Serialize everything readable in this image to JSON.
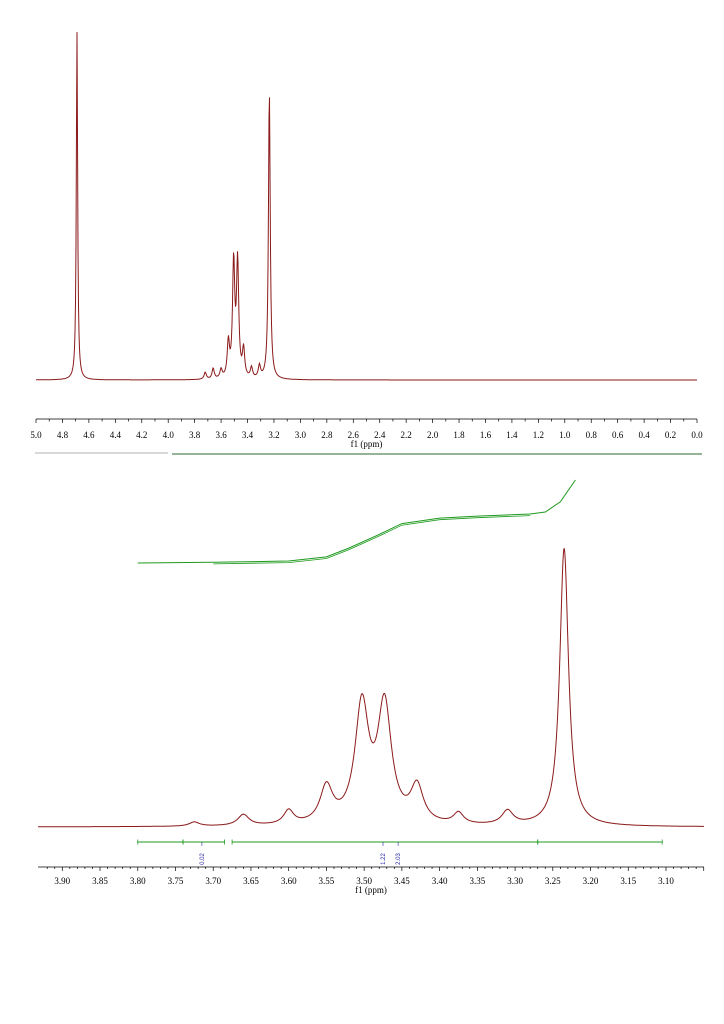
{
  "colors": {
    "spectrum": "#8b1a1a",
    "integral": "#1f9a1f",
    "integral_label": "#2a2aa8",
    "axis": "#000000"
  },
  "chart_data": [
    {
      "type": "line",
      "xlabel": "f1 (ppm)",
      "xlim": [
        5.0,
        0.0
      ],
      "x_reversed": true,
      "ticks": [
        "5.0",
        "4.8",
        "4.6",
        "4.4",
        "4.2",
        "4.0",
        "3.8",
        "3.6",
        "3.4",
        "3.2",
        "3.0",
        "2.8",
        "2.6",
        "2.4",
        "2.2",
        "2.0",
        "1.8",
        "1.6",
        "1.4",
        "1.2",
        "1.0",
        "0.8",
        "0.6",
        "0.4",
        "0.2",
        "0.0"
      ],
      "baseline": 0.0,
      "ylim": [
        0,
        1.0
      ],
      "peaks": [
        {
          "x": 4.69,
          "height": 1.0,
          "width": 0.006
        },
        {
          "x": 3.505,
          "height": 0.33,
          "width": 0.01
        },
        {
          "x": 3.475,
          "height": 0.33,
          "width": 0.01
        },
        {
          "x": 3.545,
          "height": 0.1,
          "width": 0.01
        },
        {
          "x": 3.43,
          "height": 0.08,
          "width": 0.01
        },
        {
          "x": 3.6,
          "height": 0.025,
          "width": 0.01
        },
        {
          "x": 3.66,
          "height": 0.03,
          "width": 0.01
        },
        {
          "x": 3.72,
          "height": 0.02,
          "width": 0.01
        },
        {
          "x": 3.37,
          "height": 0.03,
          "width": 0.01
        },
        {
          "x": 3.31,
          "height": 0.035,
          "width": 0.01
        },
        {
          "x": 3.235,
          "height": 0.83,
          "width": 0.008
        }
      ]
    },
    {
      "type": "line",
      "xlabel": "f1 (ppm)",
      "xlim": [
        3.92,
        3.06
      ],
      "x_reversed": true,
      "ticks": [
        "3.90",
        "3.85",
        "3.80",
        "3.75",
        "3.70",
        "3.65",
        "3.60",
        "3.55",
        "3.50",
        "3.45",
        "3.40",
        "3.35",
        "3.30",
        "3.25",
        "3.20",
        "3.15",
        "3.10"
      ],
      "ylim": [
        0,
        1.0
      ],
      "peaks": [
        {
          "x": 3.235,
          "height": 1.0,
          "width": 0.007
        },
        {
          "x": 3.503,
          "height": 0.42,
          "width": 0.011
        },
        {
          "x": 3.473,
          "height": 0.42,
          "width": 0.011
        },
        {
          "x": 3.55,
          "height": 0.13,
          "width": 0.01
        },
        {
          "x": 3.43,
          "height": 0.13,
          "width": 0.01
        },
        {
          "x": 3.66,
          "height": 0.04,
          "width": 0.009
        },
        {
          "x": 3.6,
          "height": 0.05,
          "width": 0.008
        },
        {
          "x": 3.725,
          "height": 0.015,
          "width": 0.008
        },
        {
          "x": 3.375,
          "height": 0.04,
          "width": 0.008
        },
        {
          "x": 3.31,
          "height": 0.05,
          "width": 0.009
        }
      ],
      "integral_curve": [
        [
          3.8,
          0.0
        ],
        [
          3.7,
          0.01
        ],
        [
          3.6,
          0.03
        ],
        [
          3.55,
          0.09
        ],
        [
          3.52,
          0.22
        ],
        [
          3.48,
          0.42
        ],
        [
          3.45,
          0.58
        ],
        [
          3.4,
          0.66
        ],
        [
          3.35,
          0.69
        ],
        [
          3.28,
          0.72
        ],
        [
          3.26,
          0.75
        ],
        [
          3.24,
          0.9
        ],
        [
          3.22,
          1.22
        ]
      ],
      "integration_regions": [
        {
          "from": 3.8,
          "to": 3.74
        },
        {
          "from": 3.74,
          "to": 3.685
        },
        {
          "from": 3.675,
          "to": 3.27
        },
        {
          "from": 3.27,
          "to": 3.105
        }
      ],
      "integration_values": [
        {
          "x": 3.715,
          "label": "0.02"
        },
        {
          "x": 3.475,
          "label": "1.22"
        },
        {
          "x": 3.455,
          "label": "2.03"
        }
      ]
    }
  ]
}
